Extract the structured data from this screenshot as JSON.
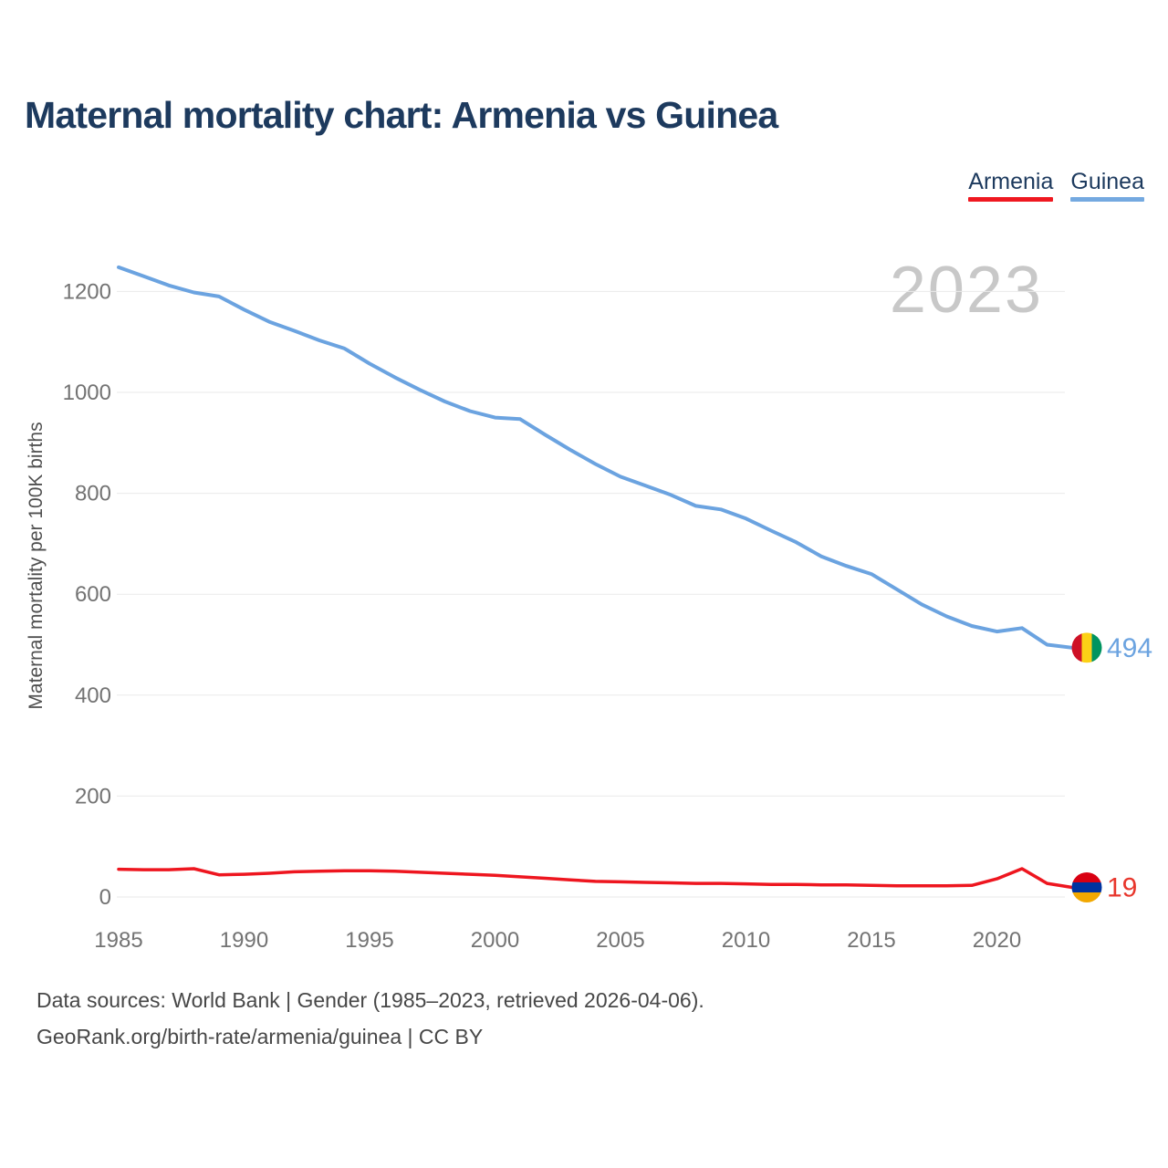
{
  "page": {
    "title": "Maternal mortality chart: Armenia vs Guinea"
  },
  "legend": {
    "items": [
      {
        "label": "Armenia",
        "color": "#ef1820"
      },
      {
        "label": "Guinea",
        "color": "#74a9e0"
      }
    ]
  },
  "watermark": "2023",
  "axes": {
    "y_label": "Maternal mortality per 100K births",
    "y_ticks": [
      0,
      200,
      400,
      600,
      800,
      1000,
      1200
    ],
    "x_ticks": [
      1985,
      1990,
      1995,
      2000,
      2005,
      2010,
      2015,
      2020
    ]
  },
  "end_labels": [
    {
      "series": "Guinea",
      "value": 494,
      "text_color": "#6ba3e0",
      "flag_icon": "guinea-flag-icon",
      "flag": {
        "orientation": "vertical",
        "colors": [
          "#ce1126",
          "#fcd116",
          "#009460"
        ]
      }
    },
    {
      "series": "Armenia",
      "value": 19,
      "text_color": "#e8362c",
      "flag_icon": "armenia-flag-icon",
      "flag": {
        "orientation": "horizontal",
        "colors": [
          "#d90012",
          "#0033a0",
          "#f2a800"
        ]
      }
    }
  ],
  "footer": {
    "line1": "Data sources: World Bank | Gender (1985–2023, retrieved 2026-04-06).",
    "line2": "GeoRank.org/birth-rate/armenia/guinea | CC BY"
  },
  "chart_data": {
    "type": "line",
    "title": "Maternal mortality chart: Armenia vs Guinea",
    "xlabel": "",
    "ylabel": "Maternal mortality per 100K births",
    "xlim": [
      1985,
      2023
    ],
    "ylim": [
      0,
      1300
    ],
    "grid": true,
    "legend_position": "top-right",
    "x": [
      1985,
      1986,
      1987,
      1988,
      1989,
      1990,
      1991,
      1992,
      1993,
      1994,
      1995,
      1996,
      1997,
      1998,
      1999,
      2000,
      2001,
      2002,
      2003,
      2004,
      2005,
      2006,
      2007,
      2008,
      2009,
      2010,
      2011,
      2012,
      2013,
      2014,
      2015,
      2016,
      2017,
      2018,
      2019,
      2020,
      2021,
      2022,
      2023
    ],
    "series": [
      {
        "name": "Armenia",
        "color": "#ee161f",
        "values": [
          55,
          54,
          54,
          56,
          44,
          45,
          47,
          50,
          51,
          52,
          52,
          51,
          49,
          47,
          45,
          43,
          40,
          37,
          34,
          31,
          30,
          29,
          28,
          27,
          27,
          26,
          25,
          25,
          24,
          24,
          23,
          22,
          22,
          22,
          23,
          36,
          56,
          27,
          19
        ]
      },
      {
        "name": "Guinea",
        "color": "#6ba3e0",
        "values": [
          1248,
          1230,
          1212,
          1198,
          1190,
          1164,
          1140,
          1122,
          1103,
          1087,
          1057,
          1030,
          1005,
          982,
          963,
          950,
          947,
          916,
          886,
          858,
          833,
          815,
          797,
          775,
          768,
          750,
          726,
          703,
          675,
          656,
          640,
          610,
          580,
          556,
          537,
          526,
          533,
          500,
          494
        ]
      }
    ],
    "end_annotations": {
      "Guinea": 494,
      "Armenia": 19
    },
    "watermark": "2023"
  }
}
